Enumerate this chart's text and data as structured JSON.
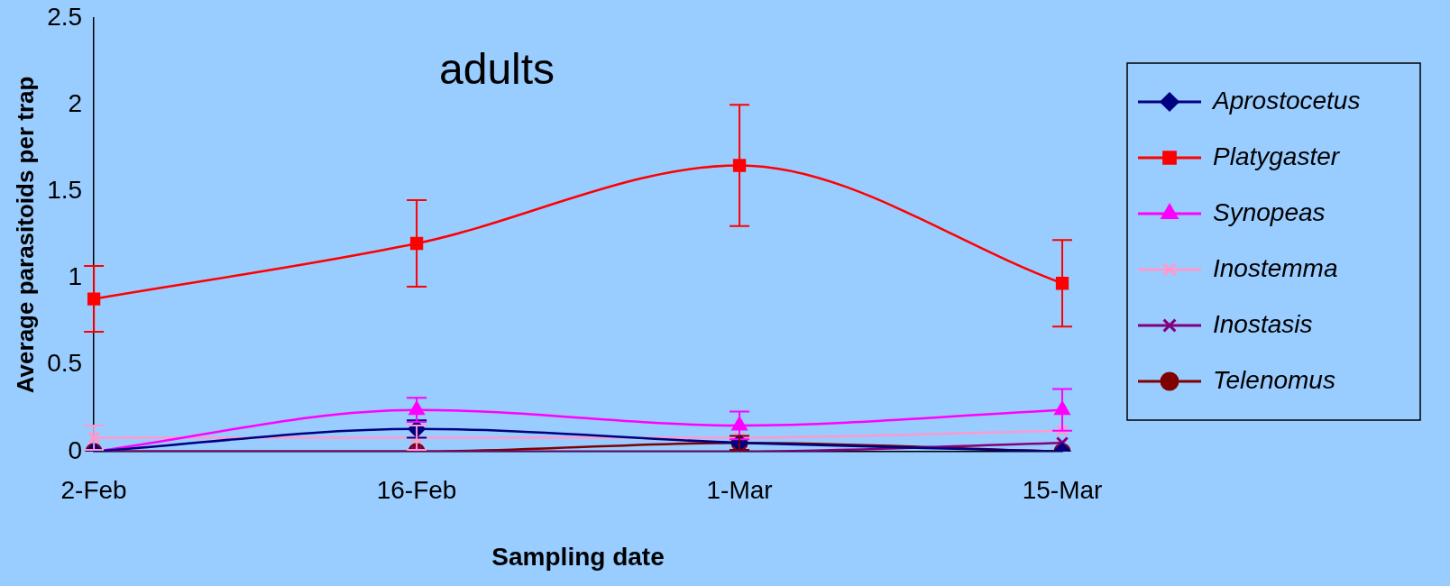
{
  "chart_data": {
    "type": "line",
    "title": "adults",
    "xlabel": "Sampling date",
    "ylabel": "Average parasitoids per trap",
    "categories": [
      "2-Feb",
      "16-Feb",
      "1-Mar",
      "15-Mar"
    ],
    "ylim": [
      0,
      2.5
    ],
    "yticks": [
      0,
      0.5,
      1,
      1.5,
      2,
      2.5
    ],
    "grid": false,
    "legend": "right",
    "line_style": "solid",
    "series": [
      {
        "name": "Aprostocetus",
        "color": "#000080",
        "marker": "diamond",
        "values": [
          0,
          0.13,
          0.05,
          0
        ],
        "errors": [
          null,
          0.05,
          null,
          null
        ]
      },
      {
        "name": "Platygaster",
        "color": "#ff0000",
        "marker": "square",
        "values": [
          0.88,
          1.2,
          1.65,
          0.97
        ],
        "errors": [
          0.19,
          0.25,
          0.35,
          0.25
        ]
      },
      {
        "name": "Synopeas",
        "color": "#ff00ff",
        "marker": "triangle",
        "values": [
          0,
          0.24,
          0.15,
          0.24
        ],
        "errors": [
          null,
          0.07,
          0.08,
          0.12
        ]
      },
      {
        "name": "Inostemma",
        "color": "#ff99cc",
        "marker": "cross",
        "values": [
          0.08,
          0.08,
          0.08,
          0.12
        ],
        "errors": [
          0.07,
          0.07,
          null,
          null
        ]
      },
      {
        "name": "Inostasis",
        "color": "#800080",
        "marker": "cross",
        "values": [
          0,
          0,
          0,
          0.05
        ],
        "errors": [
          null,
          null,
          null,
          null
        ]
      },
      {
        "name": "Telenomus",
        "color": "#800000",
        "marker": "circle",
        "values": [
          0,
          0,
          0.05,
          0
        ],
        "errors": [
          null,
          null,
          0.04,
          null
        ]
      }
    ]
  }
}
